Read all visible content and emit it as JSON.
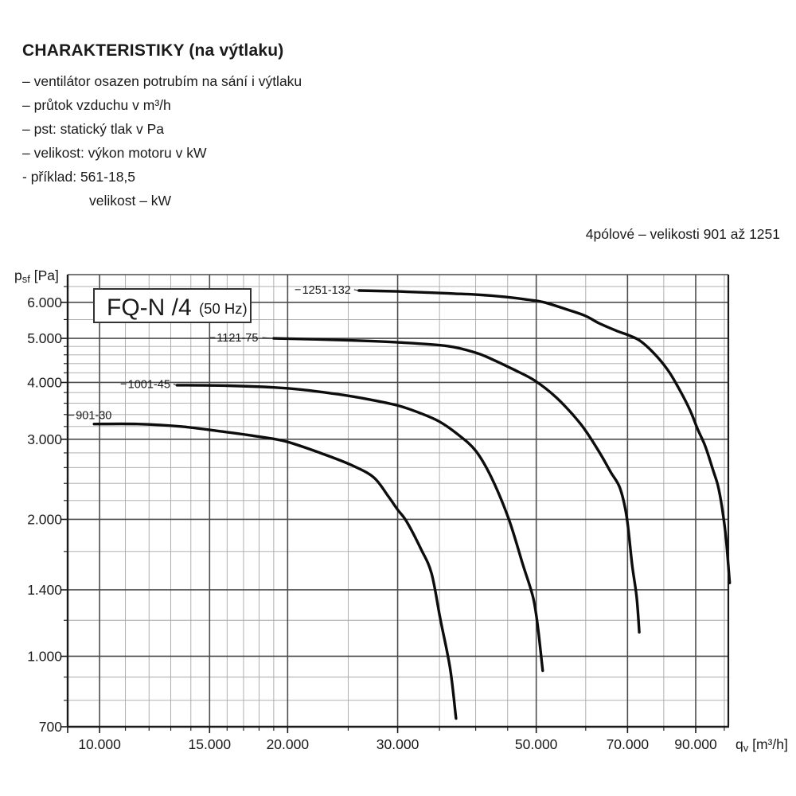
{
  "header": {
    "title": "CHARAKTERISTIKY (na výtlaku)",
    "lines": [
      "– ventilátor osazen potrubím na sání i výtlaku",
      "– průtok vzduchu v m³/h",
      "– pst: statický tlak v Pa",
      "– velikost: výkon motoru v kW",
      "- příklad: 561-18,5"
    ],
    "example_sub": "velikost – kW"
  },
  "subtitle": "4pólové – velikosti 901 až 1251",
  "colors": {
    "text": "#1a1a1a",
    "curve": "#0d0d0d",
    "grid_minor": "#a6a6a6",
    "grid_major": "#4d4d4d",
    "frame": "#1a1a1a",
    "box_border": "#333333",
    "background": "#ffffff"
  },
  "chart_data": {
    "type": "line",
    "title_box": {
      "main": "FQ-N /4",
      "sub": "(50 Hz)"
    },
    "x_axis": {
      "scale": "log",
      "range": [
        8890,
        101500
      ],
      "label_parts": [
        {
          "t": "q"
        },
        {
          "s": "v"
        },
        {
          "t": " [m³/h]"
        }
      ],
      "ticks": [
        {
          "v": 10000,
          "label": "10.000"
        },
        {
          "v": 15000,
          "label": "15.000"
        },
        {
          "v": 20000,
          "label": "20.000"
        },
        {
          "v": 30000,
          "label": "30.000"
        },
        {
          "v": 50000,
          "label": "50.000"
        },
        {
          "v": 70000,
          "label": "70.000"
        },
        {
          "v": 90000,
          "label": "90.000"
        }
      ],
      "minor": [
        11000,
        12000,
        13000,
        14000,
        16000,
        17000,
        18000,
        19000,
        25000,
        35000,
        40000,
        45000,
        60000,
        80000,
        100000
      ]
    },
    "y_axis": {
      "scale": "log",
      "range": [
        700,
        6904
      ],
      "label_parts": [
        {
          "t": "p"
        },
        {
          "s": "sf"
        },
        {
          "t": " [Pa]"
        }
      ],
      "ticks": [
        {
          "v": 700,
          "label": "700"
        },
        {
          "v": 1000,
          "label": "1.000"
        },
        {
          "v": 1400,
          "label": "1.400"
        },
        {
          "v": 2000,
          "label": "2.000"
        },
        {
          "v": 3000,
          "label": "3.000"
        },
        {
          "v": 4000,
          "label": "4.000"
        },
        {
          "v": 5000,
          "label": "5.000"
        },
        {
          "v": 6000,
          "label": "6.000"
        }
      ],
      "minor": [
        800,
        900,
        1200,
        1700,
        2200,
        2400,
        2600,
        2800,
        3200,
        3400,
        3600,
        3800,
        4200,
        4400,
        4600,
        4800,
        5500,
        6500
      ]
    },
    "series": [
      {
        "name": "901-30",
        "label": {
          "text": "901-30",
          "v": 9160,
          "p": 3390
        },
        "points": [
          [
            9800,
            3240
          ],
          [
            11500,
            3240
          ],
          [
            13500,
            3200
          ],
          [
            15700,
            3120
          ],
          [
            18000,
            3040
          ],
          [
            20000,
            2960
          ],
          [
            23200,
            2760
          ],
          [
            25500,
            2620
          ],
          [
            27500,
            2470
          ],
          [
            29000,
            2245
          ],
          [
            30000,
            2100
          ],
          [
            31000,
            1980
          ],
          [
            32700,
            1720
          ],
          [
            34000,
            1520
          ],
          [
            35100,
            1210
          ],
          [
            36400,
            940
          ],
          [
            37200,
            730
          ]
        ]
      },
      {
        "name": "1001-45",
        "label": {
          "text": "1001-45",
          "v": 11100,
          "p": 3970
        },
        "points": [
          [
            13300,
            3945
          ],
          [
            16000,
            3935
          ],
          [
            19000,
            3900
          ],
          [
            21300,
            3850
          ],
          [
            24000,
            3770
          ],
          [
            27000,
            3670
          ],
          [
            30000,
            3560
          ],
          [
            32500,
            3430
          ],
          [
            35000,
            3280
          ],
          [
            37500,
            3070
          ],
          [
            40000,
            2830
          ],
          [
            42400,
            2470
          ],
          [
            45200,
            2000
          ],
          [
            47600,
            1590
          ],
          [
            49400,
            1350
          ],
          [
            50300,
            1160
          ],
          [
            51200,
            930
          ]
        ]
      },
      {
        "name": "1121-75",
        "label": {
          "text": "1121-75",
          "v": 15400,
          "p": 5020
        },
        "points": [
          [
            19000,
            5000
          ],
          [
            24000,
            4960
          ],
          [
            30000,
            4900
          ],
          [
            36000,
            4810
          ],
          [
            40000,
            4650
          ],
          [
            42600,
            4490
          ],
          [
            46000,
            4270
          ],
          [
            49700,
            4040
          ],
          [
            53900,
            3700
          ],
          [
            58900,
            3240
          ],
          [
            63000,
            2820
          ],
          [
            65800,
            2540
          ],
          [
            68100,
            2340
          ],
          [
            69800,
            2020
          ],
          [
            71200,
            1590
          ],
          [
            72400,
            1350
          ],
          [
            73100,
            1130
          ]
        ]
      },
      {
        "name": "1251-132",
        "label": {
          "text": "1251-132",
          "v": 21100,
          "p": 6400
        },
        "points": [
          [
            26000,
            6370
          ],
          [
            30000,
            6340
          ],
          [
            34000,
            6300
          ],
          [
            37000,
            6270
          ],
          [
            40000,
            6240
          ],
          [
            45000,
            6160
          ],
          [
            48500,
            6080
          ],
          [
            51500,
            6000
          ],
          [
            56600,
            5760
          ],
          [
            60000,
            5600
          ],
          [
            63000,
            5400
          ],
          [
            67100,
            5200
          ],
          [
            70500,
            5070
          ],
          [
            73300,
            4940
          ],
          [
            77000,
            4650
          ],
          [
            81200,
            4260
          ],
          [
            84400,
            3900
          ],
          [
            88100,
            3480
          ],
          [
            90700,
            3150
          ],
          [
            93200,
            2900
          ],
          [
            95900,
            2570
          ],
          [
            97700,
            2370
          ],
          [
            99300,
            2100
          ],
          [
            100700,
            1800
          ],
          [
            102000,
            1450
          ]
        ]
      }
    ]
  }
}
